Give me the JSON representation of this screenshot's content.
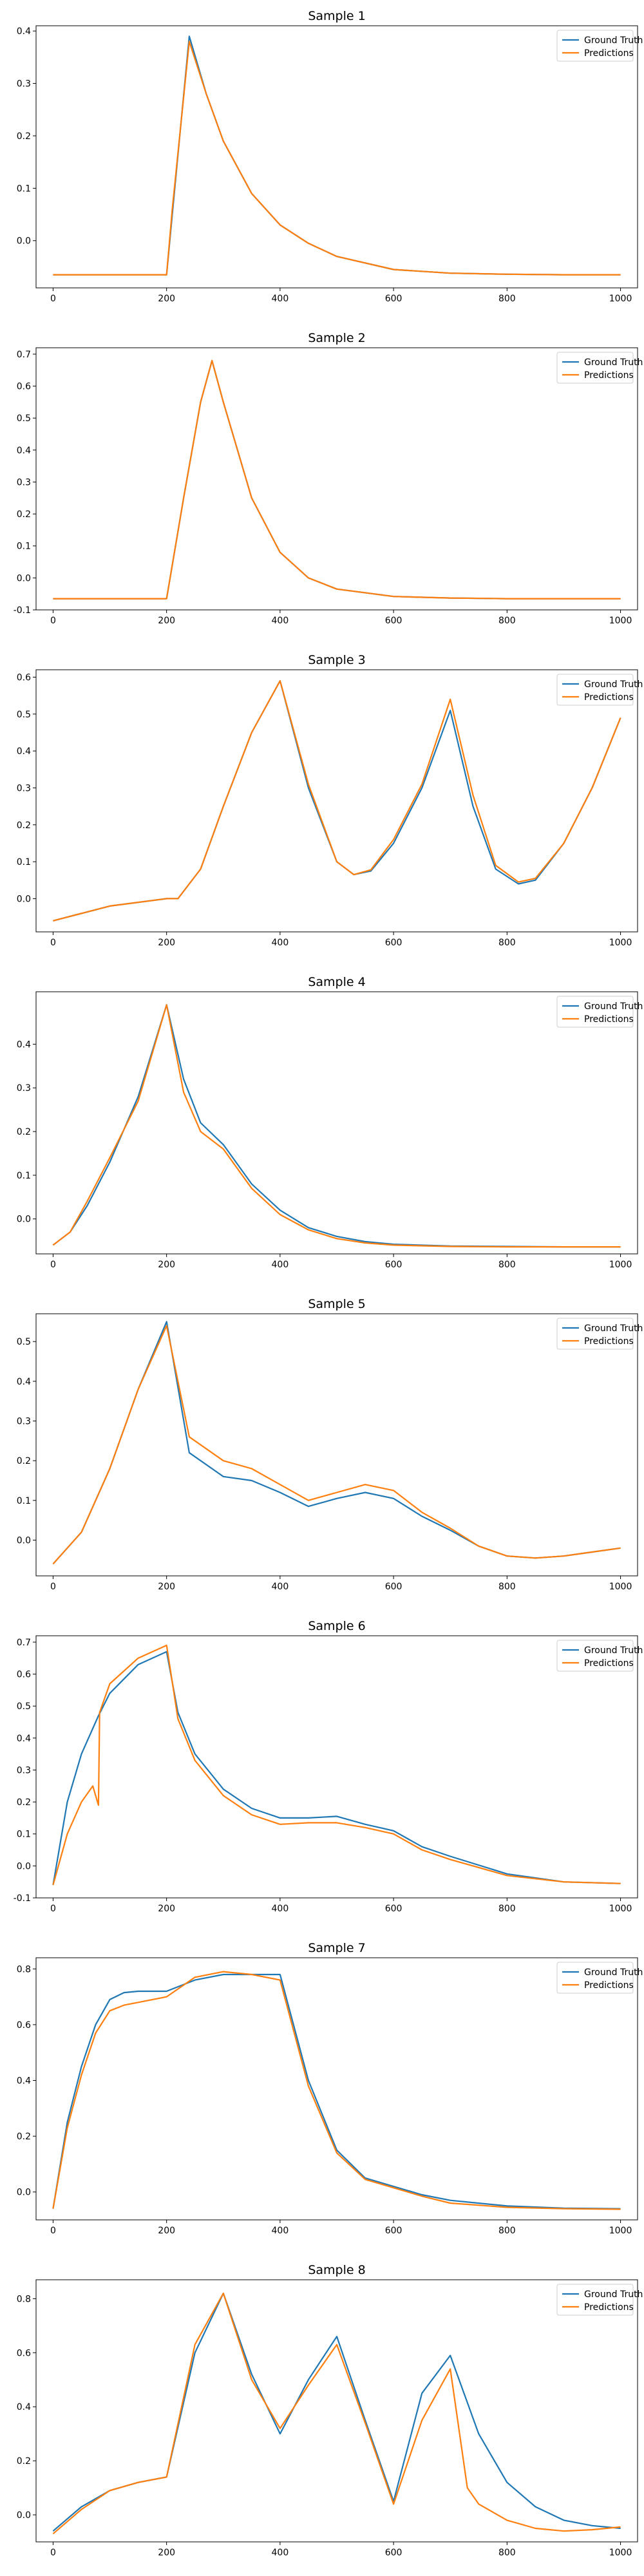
{
  "chart_data": [
    {
      "type": "line",
      "title": "Sample 1",
      "xlabel": "",
      "ylabel": "",
      "xlim": [
        -30,
        1030
      ],
      "ylim": [
        -0.09,
        0.41
      ],
      "xticks": [
        0,
        200,
        400,
        600,
        800,
        1000
      ],
      "yticks": [
        0.0,
        0.1,
        0.2,
        0.3,
        0.4
      ],
      "grid": false,
      "legend": "top-right",
      "series": [
        {
          "name": "Ground Truth",
          "color": "#1f77b4",
          "x": [
            0,
            200,
            210,
            240,
            270,
            300,
            350,
            400,
            450,
            500,
            600,
            700,
            800,
            900,
            1000
          ],
          "y": [
            -0.065,
            -0.065,
            0.05,
            0.39,
            0.28,
            0.19,
            0.09,
            0.03,
            -0.005,
            -0.03,
            -0.055,
            -0.062,
            -0.064,
            -0.065,
            -0.065
          ]
        },
        {
          "name": "Predictions",
          "color": "#ff7f0e",
          "x": [
            0,
            200,
            210,
            240,
            270,
            300,
            350,
            400,
            450,
            500,
            600,
            700,
            800,
            900,
            1000
          ],
          "y": [
            -0.065,
            -0.065,
            0.06,
            0.38,
            0.28,
            0.19,
            0.09,
            0.03,
            -0.005,
            -0.03,
            -0.055,
            -0.062,
            -0.064,
            -0.065,
            -0.065
          ]
        }
      ]
    },
    {
      "type": "line",
      "title": "Sample 2",
      "xlabel": "",
      "ylabel": "",
      "xlim": [
        -30,
        1030
      ],
      "ylim": [
        -0.1,
        0.72
      ],
      "xticks": [
        0,
        200,
        400,
        600,
        800,
        1000
      ],
      "yticks": [
        -0.1,
        0.0,
        0.1,
        0.2,
        0.3,
        0.4,
        0.5,
        0.6,
        0.7
      ],
      "grid": false,
      "legend": "top-right",
      "series": [
        {
          "name": "Ground Truth",
          "color": "#1f77b4",
          "x": [
            0,
            200,
            230,
            260,
            280,
            300,
            350,
            400,
            450,
            500,
            600,
            700,
            800,
            900,
            1000
          ],
          "y": [
            -0.065,
            -0.065,
            0.25,
            0.55,
            0.68,
            0.55,
            0.25,
            0.08,
            0.0,
            -0.035,
            -0.058,
            -0.063,
            -0.065,
            -0.065,
            -0.065
          ]
        },
        {
          "name": "Predictions",
          "color": "#ff7f0e",
          "x": [
            0,
            200,
            230,
            260,
            280,
            300,
            350,
            400,
            450,
            500,
            600,
            700,
            800,
            900,
            1000
          ],
          "y": [
            -0.065,
            -0.065,
            0.25,
            0.55,
            0.68,
            0.55,
            0.25,
            0.08,
            0.0,
            -0.035,
            -0.058,
            -0.063,
            -0.065,
            -0.065,
            -0.065
          ]
        }
      ]
    },
    {
      "type": "line",
      "title": "Sample 3",
      "xlabel": "",
      "ylabel": "",
      "xlim": [
        -30,
        1030
      ],
      "ylim": [
        -0.09,
        0.62
      ],
      "xticks": [
        0,
        200,
        400,
        600,
        800,
        1000
      ],
      "yticks": [
        0.0,
        0.1,
        0.2,
        0.3,
        0.4,
        0.5,
        0.6
      ],
      "grid": false,
      "legend": "top-right",
      "series": [
        {
          "name": "Ground Truth",
          "color": "#1f77b4",
          "x": [
            0,
            100,
            200,
            220,
            260,
            300,
            350,
            400,
            450,
            500,
            530,
            560,
            600,
            650,
            700,
            740,
            780,
            820,
            850,
            900,
            950,
            1000
          ],
          "y": [
            -0.06,
            -0.02,
            0.0,
            0.0,
            0.08,
            0.25,
            0.45,
            0.59,
            0.3,
            0.1,
            0.065,
            0.075,
            0.15,
            0.3,
            0.51,
            0.25,
            0.08,
            0.04,
            0.05,
            0.15,
            0.3,
            0.49
          ]
        },
        {
          "name": "Predictions",
          "color": "#ff7f0e",
          "x": [
            0,
            100,
            200,
            220,
            260,
            300,
            350,
            400,
            450,
            500,
            530,
            560,
            600,
            650,
            700,
            740,
            780,
            820,
            850,
            900,
            950,
            1000
          ],
          "y": [
            -0.06,
            -0.02,
            0.0,
            0.0,
            0.08,
            0.25,
            0.45,
            0.59,
            0.31,
            0.1,
            0.065,
            0.078,
            0.16,
            0.31,
            0.54,
            0.28,
            0.09,
            0.045,
            0.055,
            0.15,
            0.3,
            0.49
          ]
        }
      ]
    },
    {
      "type": "line",
      "title": "Sample 4",
      "xlabel": "",
      "ylabel": "",
      "xlim": [
        -30,
        1030
      ],
      "ylim": [
        -0.08,
        0.52
      ],
      "xticks": [
        0,
        200,
        400,
        600,
        800,
        1000
      ],
      "yticks": [
        0.0,
        0.1,
        0.2,
        0.3,
        0.4
      ],
      "grid": false,
      "legend": "top-right",
      "series": [
        {
          "name": "Ground Truth",
          "color": "#1f77b4",
          "x": [
            0,
            30,
            60,
            100,
            150,
            200,
            230,
            260,
            300,
            350,
            400,
            450,
            500,
            550,
            600,
            700,
            800,
            900,
            1000
          ],
          "y": [
            -0.06,
            -0.03,
            0.03,
            0.13,
            0.28,
            0.49,
            0.32,
            0.22,
            0.17,
            0.08,
            0.02,
            -0.02,
            -0.04,
            -0.052,
            -0.058,
            -0.062,
            -0.063,
            -0.064,
            -0.064
          ]
        },
        {
          "name": "Predictions",
          "color": "#ff7f0e",
          "x": [
            0,
            30,
            60,
            100,
            150,
            200,
            230,
            260,
            300,
            350,
            400,
            450,
            500,
            550,
            600,
            700,
            800,
            900,
            1000
          ],
          "y": [
            -0.06,
            -0.03,
            0.04,
            0.14,
            0.27,
            0.49,
            0.29,
            0.2,
            0.16,
            0.07,
            0.01,
            -0.025,
            -0.045,
            -0.055,
            -0.06,
            -0.063,
            -0.064,
            -0.064,
            -0.064
          ]
        }
      ]
    },
    {
      "type": "line",
      "title": "Sample 5",
      "xlabel": "",
      "ylabel": "",
      "xlim": [
        -30,
        1030
      ],
      "ylim": [
        -0.09,
        0.57
      ],
      "xticks": [
        0,
        200,
        400,
        600,
        800,
        1000
      ],
      "yticks": [
        0.0,
        0.1,
        0.2,
        0.3,
        0.4,
        0.5
      ],
      "grid": false,
      "legend": "top-right",
      "series": [
        {
          "name": "Ground Truth",
          "color": "#1f77b4",
          "x": [
            0,
            50,
            100,
            150,
            200,
            240,
            300,
            350,
            400,
            450,
            500,
            550,
            600,
            650,
            700,
            750,
            800,
            850,
            900,
            950,
            1000
          ],
          "y": [
            -0.06,
            0.02,
            0.18,
            0.38,
            0.55,
            0.22,
            0.16,
            0.15,
            0.12,
            0.085,
            0.105,
            0.12,
            0.105,
            0.06,
            0.025,
            -0.015,
            -0.04,
            -0.045,
            -0.04,
            -0.03,
            -0.02
          ]
        },
        {
          "name": "Predictions",
          "color": "#ff7f0e",
          "x": [
            0,
            50,
            100,
            150,
            200,
            240,
            300,
            350,
            400,
            450,
            500,
            550,
            600,
            650,
            700,
            750,
            800,
            850,
            900,
            950,
            1000
          ],
          "y": [
            -0.06,
            0.02,
            0.18,
            0.38,
            0.54,
            0.26,
            0.2,
            0.18,
            0.14,
            0.1,
            0.12,
            0.14,
            0.125,
            0.07,
            0.03,
            -0.015,
            -0.04,
            -0.045,
            -0.04,
            -0.03,
            -0.02
          ]
        }
      ]
    },
    {
      "type": "line",
      "title": "Sample 6",
      "xlabel": "",
      "ylabel": "",
      "xlim": [
        -30,
        1030
      ],
      "ylim": [
        -0.1,
        0.72
      ],
      "xticks": [
        0,
        200,
        400,
        600,
        800,
        1000
      ],
      "yticks": [
        -0.1,
        0.0,
        0.1,
        0.2,
        0.3,
        0.4,
        0.5,
        0.6,
        0.7
      ],
      "grid": false,
      "legend": "top-right",
      "series": [
        {
          "name": "Ground Truth",
          "color": "#1f77b4",
          "x": [
            0,
            25,
            50,
            80,
            100,
            150,
            200,
            220,
            250,
            300,
            350,
            400,
            450,
            500,
            550,
            600,
            650,
            700,
            800,
            900,
            1000
          ],
          "y": [
            -0.06,
            0.2,
            0.35,
            0.47,
            0.54,
            0.63,
            0.67,
            0.48,
            0.35,
            0.24,
            0.18,
            0.15,
            0.15,
            0.155,
            0.13,
            0.11,
            0.06,
            0.03,
            -0.025,
            -0.05,
            -0.055
          ]
        },
        {
          "name": "Predictions",
          "color": "#ff7f0e",
          "x": [
            0,
            25,
            50,
            70,
            80,
            82,
            100,
            150,
            200,
            220,
            250,
            300,
            350,
            400,
            450,
            500,
            550,
            600,
            650,
            700,
            800,
            900,
            1000
          ],
          "y": [
            -0.06,
            0.1,
            0.2,
            0.25,
            0.19,
            0.48,
            0.57,
            0.65,
            0.69,
            0.46,
            0.33,
            0.22,
            0.16,
            0.13,
            0.135,
            0.135,
            0.12,
            0.1,
            0.05,
            0.02,
            -0.03,
            -0.05,
            -0.055
          ]
        }
      ]
    },
    {
      "type": "line",
      "title": "Sample 7",
      "xlabel": "",
      "ylabel": "",
      "xlim": [
        -30,
        1030
      ],
      "ylim": [
        -0.1,
        0.84
      ],
      "xticks": [
        0,
        200,
        400,
        600,
        800,
        1000
      ],
      "yticks": [
        0.0,
        0.2,
        0.4,
        0.6,
        0.8
      ],
      "grid": false,
      "legend": "top-right",
      "series": [
        {
          "name": "Ground Truth",
          "color": "#1f77b4",
          "x": [
            0,
            25,
            50,
            75,
            100,
            125,
            150,
            200,
            250,
            300,
            350,
            400,
            450,
            500,
            550,
            600,
            650,
            700,
            800,
            900,
            1000
          ],
          "y": [
            -0.06,
            0.25,
            0.45,
            0.6,
            0.69,
            0.715,
            0.72,
            0.72,
            0.76,
            0.78,
            0.78,
            0.78,
            0.4,
            0.15,
            0.05,
            0.02,
            -0.01,
            -0.03,
            -0.05,
            -0.058,
            -0.06
          ]
        },
        {
          "name": "Predictions",
          "color": "#ff7f0e",
          "x": [
            0,
            25,
            50,
            75,
            100,
            125,
            150,
            200,
            250,
            300,
            350,
            400,
            450,
            500,
            550,
            600,
            650,
            700,
            800,
            900,
            1000
          ],
          "y": [
            -0.06,
            0.23,
            0.42,
            0.57,
            0.65,
            0.67,
            0.68,
            0.7,
            0.77,
            0.79,
            0.78,
            0.76,
            0.38,
            0.14,
            0.045,
            0.015,
            -0.015,
            -0.04,
            -0.055,
            -0.06,
            -0.062
          ]
        }
      ]
    },
    {
      "type": "line",
      "title": "Sample 8",
      "xlabel": "",
      "ylabel": "",
      "xlim": [
        -30,
        1030
      ],
      "ylim": [
        -0.1,
        0.87
      ],
      "xticks": [
        0,
        200,
        400,
        600,
        800,
        1000
      ],
      "yticks": [
        0.0,
        0.2,
        0.4,
        0.6,
        0.8
      ],
      "grid": false,
      "legend": "top-right",
      "series": [
        {
          "name": "Ground Truth",
          "color": "#1f77b4",
          "x": [
            0,
            50,
            100,
            150,
            200,
            250,
            300,
            350,
            400,
            450,
            500,
            550,
            600,
            650,
            700,
            750,
            800,
            850,
            900,
            950,
            1000
          ],
          "y": [
            -0.06,
            0.03,
            0.09,
            0.12,
            0.14,
            0.6,
            0.82,
            0.52,
            0.3,
            0.5,
            0.66,
            0.35,
            0.05,
            0.45,
            0.59,
            0.3,
            0.12,
            0.03,
            -0.02,
            -0.04,
            -0.05
          ]
        },
        {
          "name": "Predictions",
          "color": "#ff7f0e",
          "x": [
            0,
            50,
            100,
            150,
            200,
            250,
            300,
            350,
            400,
            450,
            500,
            550,
            600,
            650,
            700,
            730,
            750,
            800,
            850,
            900,
            950,
            1000
          ],
          "y": [
            -0.07,
            0.02,
            0.09,
            0.12,
            0.14,
            0.63,
            0.82,
            0.5,
            0.32,
            0.48,
            0.63,
            0.34,
            0.04,
            0.35,
            0.54,
            0.1,
            0.04,
            -0.02,
            -0.05,
            -0.06,
            -0.055,
            -0.045
          ]
        }
      ]
    }
  ]
}
